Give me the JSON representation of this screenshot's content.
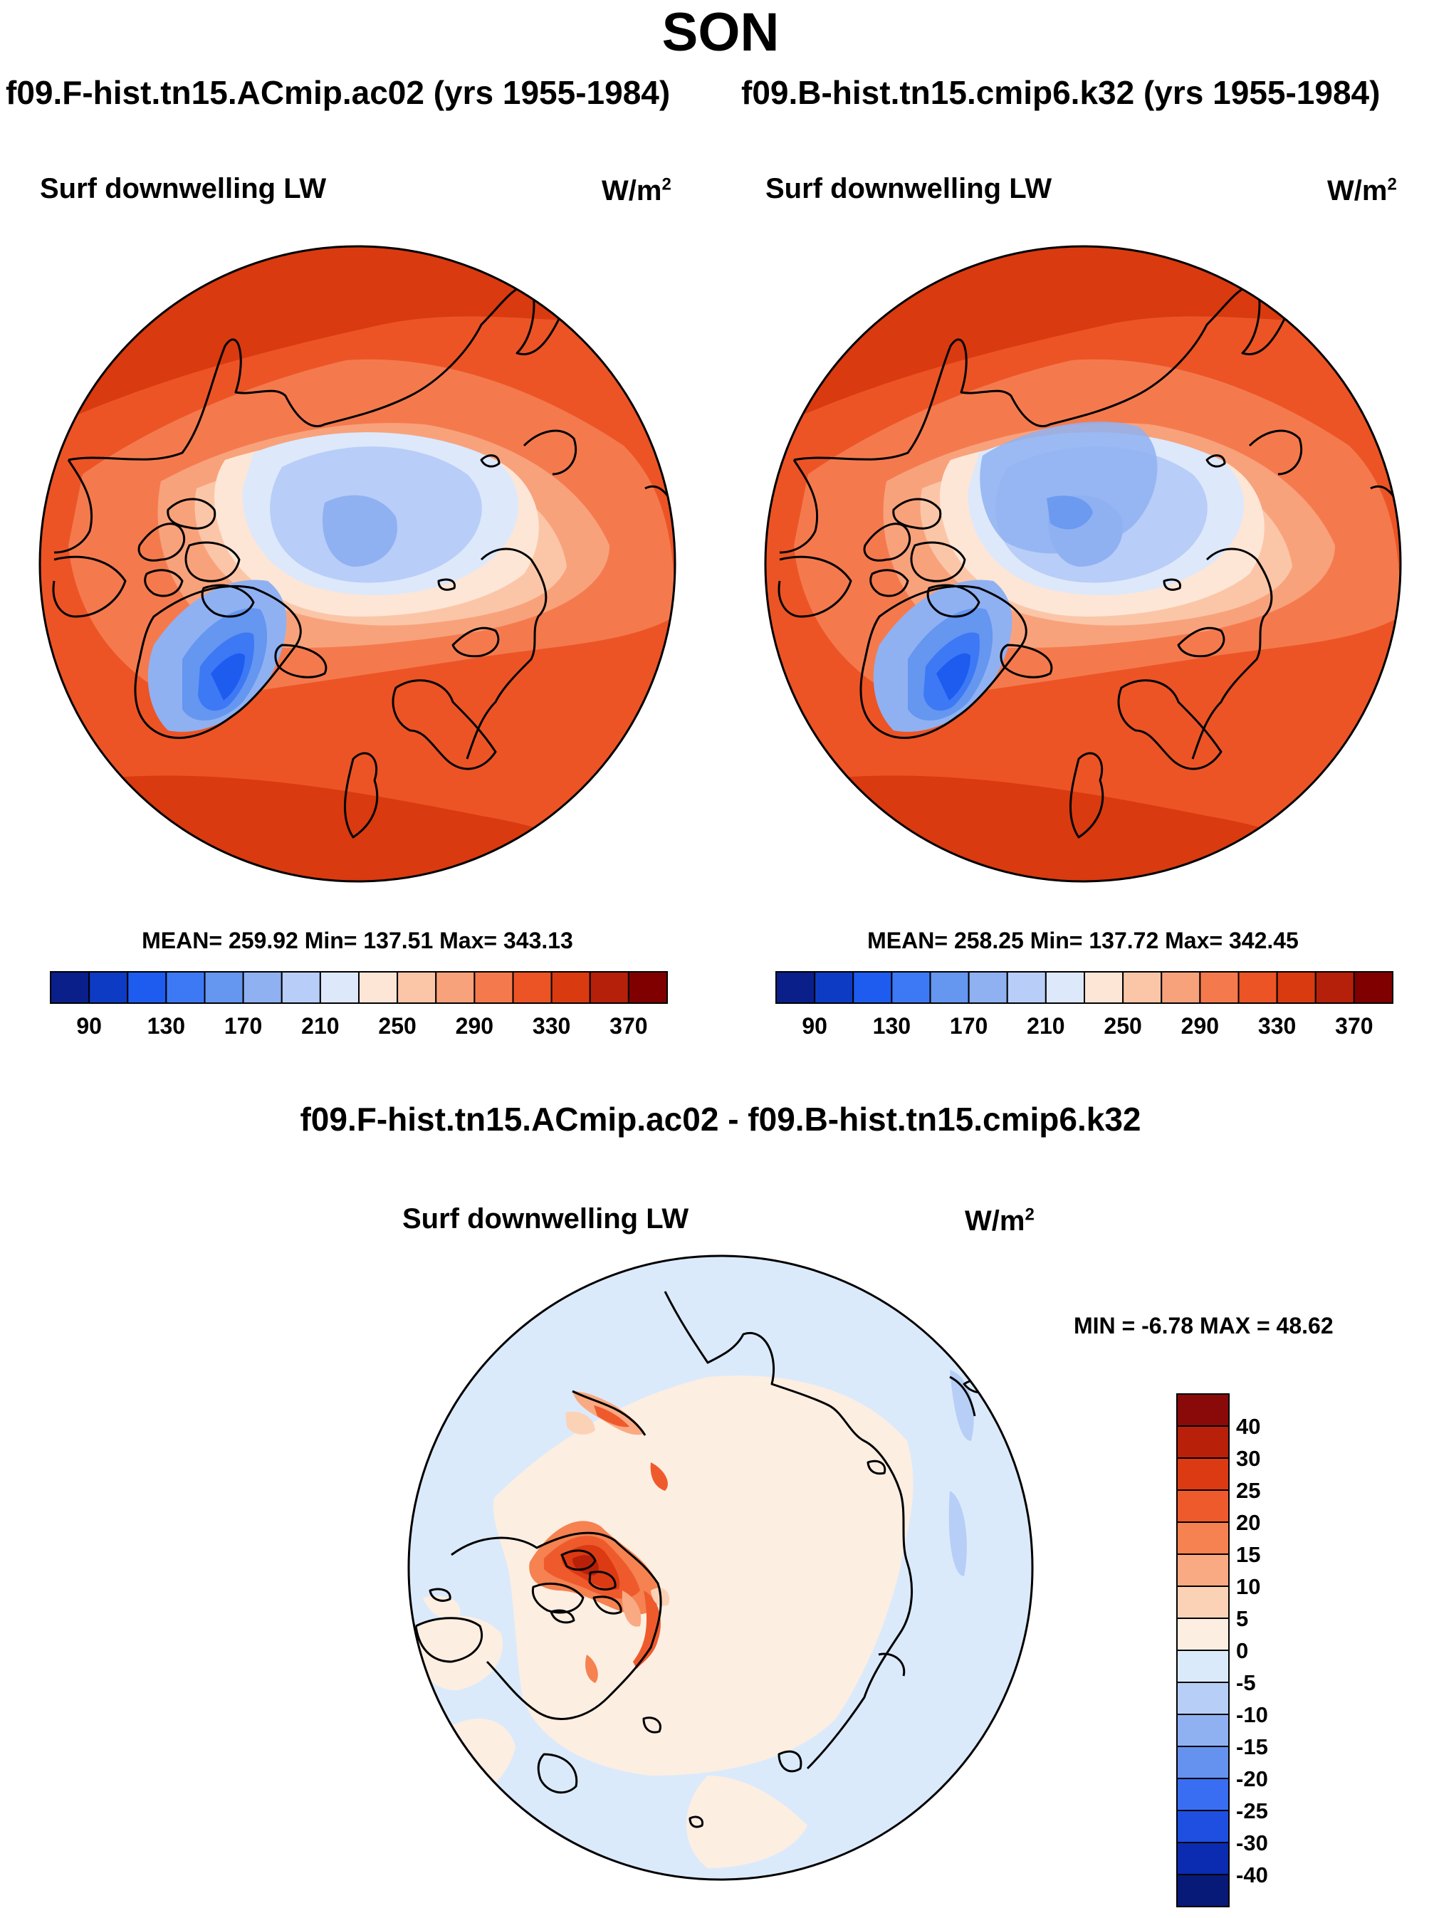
{
  "season": "SON",
  "chart_data": [
    {
      "type": "heatmap",
      "projection": "north-polar-stereographic",
      "title": "f09.F-hist.tn15.ACmip.ac02 (yrs 1955-1984)",
      "variable": "Surf downwelling LW",
      "units_base": "W/m",
      "units_exp": "2",
      "stats": "MEAN= 259.92  Min= 137.51  Max= 343.13",
      "stats_values": {
        "mean": 259.92,
        "min": 137.51,
        "max": 343.13
      },
      "colorbar": {
        "orientation": "horizontal",
        "levels": [
          90,
          110,
          130,
          150,
          170,
          190,
          210,
          230,
          250,
          270,
          290,
          310,
          330,
          350,
          370
        ],
        "tick_labels": [
          "90",
          "130",
          "170",
          "210",
          "250",
          "290",
          "330",
          "370"
        ],
        "colors": [
          "#0a1f8a",
          "#0d3bc4",
          "#1e5cf0",
          "#3d79f5",
          "#6596f0",
          "#8fb1f2",
          "#b8cdf7",
          "#dde8fb",
          "#fde6d6",
          "#fbc6a8",
          "#f8a27c",
          "#f47a4e",
          "#ec5426",
          "#d93a10",
          "#b5200a",
          "#800000"
        ]
      }
    },
    {
      "type": "heatmap",
      "projection": "north-polar-stereographic",
      "title": "f09.B-hist.tn15.cmip6.k32 (yrs 1955-1984)",
      "variable": "Surf downwelling LW",
      "units_base": "W/m",
      "units_exp": "2",
      "stats": "MEAN= 258.25  Min= 137.72  Max= 342.45",
      "stats_values": {
        "mean": 258.25,
        "min": 137.72,
        "max": 342.45
      },
      "colorbar": {
        "orientation": "horizontal",
        "levels": [
          90,
          110,
          130,
          150,
          170,
          190,
          210,
          230,
          250,
          270,
          290,
          310,
          330,
          350,
          370
        ],
        "tick_labels": [
          "90",
          "130",
          "170",
          "210",
          "250",
          "290",
          "330",
          "370"
        ],
        "colors": [
          "#0a1f8a",
          "#0d3bc4",
          "#1e5cf0",
          "#3d79f5",
          "#6596f0",
          "#8fb1f2",
          "#b8cdf7",
          "#dde8fb",
          "#fde6d6",
          "#fbc6a8",
          "#f8a27c",
          "#f47a4e",
          "#ec5426",
          "#d93a10",
          "#b5200a",
          "#800000"
        ]
      }
    },
    {
      "type": "heatmap",
      "projection": "north-polar-stereographic",
      "title": "f09.F-hist.tn15.ACmip.ac02 - f09.B-hist.tn15.cmip6.k32",
      "variable": "Surf downwelling LW",
      "units_base": "W/m",
      "units_exp": "2",
      "stats": "MIN =  -6.78 MAX =  48.62",
      "stats_values": {
        "min": -6.78,
        "max": 48.62
      },
      "colorbar": {
        "orientation": "vertical",
        "levels": [
          40,
          30,
          25,
          20,
          15,
          10,
          5,
          0,
          -5,
          -10,
          -15,
          -20,
          -25,
          -30,
          -40
        ],
        "tick_labels": [
          "40",
          "30",
          "25",
          "20",
          "15",
          "10",
          "5",
          "0",
          "-5",
          "-10",
          "-15",
          "-20",
          "-25",
          "-30",
          "-40"
        ],
        "colors": [
          "#8a0a0a",
          "#b8200a",
          "#dc3a12",
          "#ef5a2c",
          "#f58250",
          "#f9aa82",
          "#fcd2b6",
          "#fdeee2",
          "#dbeafb",
          "#b7cff7",
          "#8fb1f2",
          "#6592ee",
          "#3a6ef2",
          "#1e4fe0",
          "#0b2cb0",
          "#071a78"
        ]
      }
    }
  ]
}
